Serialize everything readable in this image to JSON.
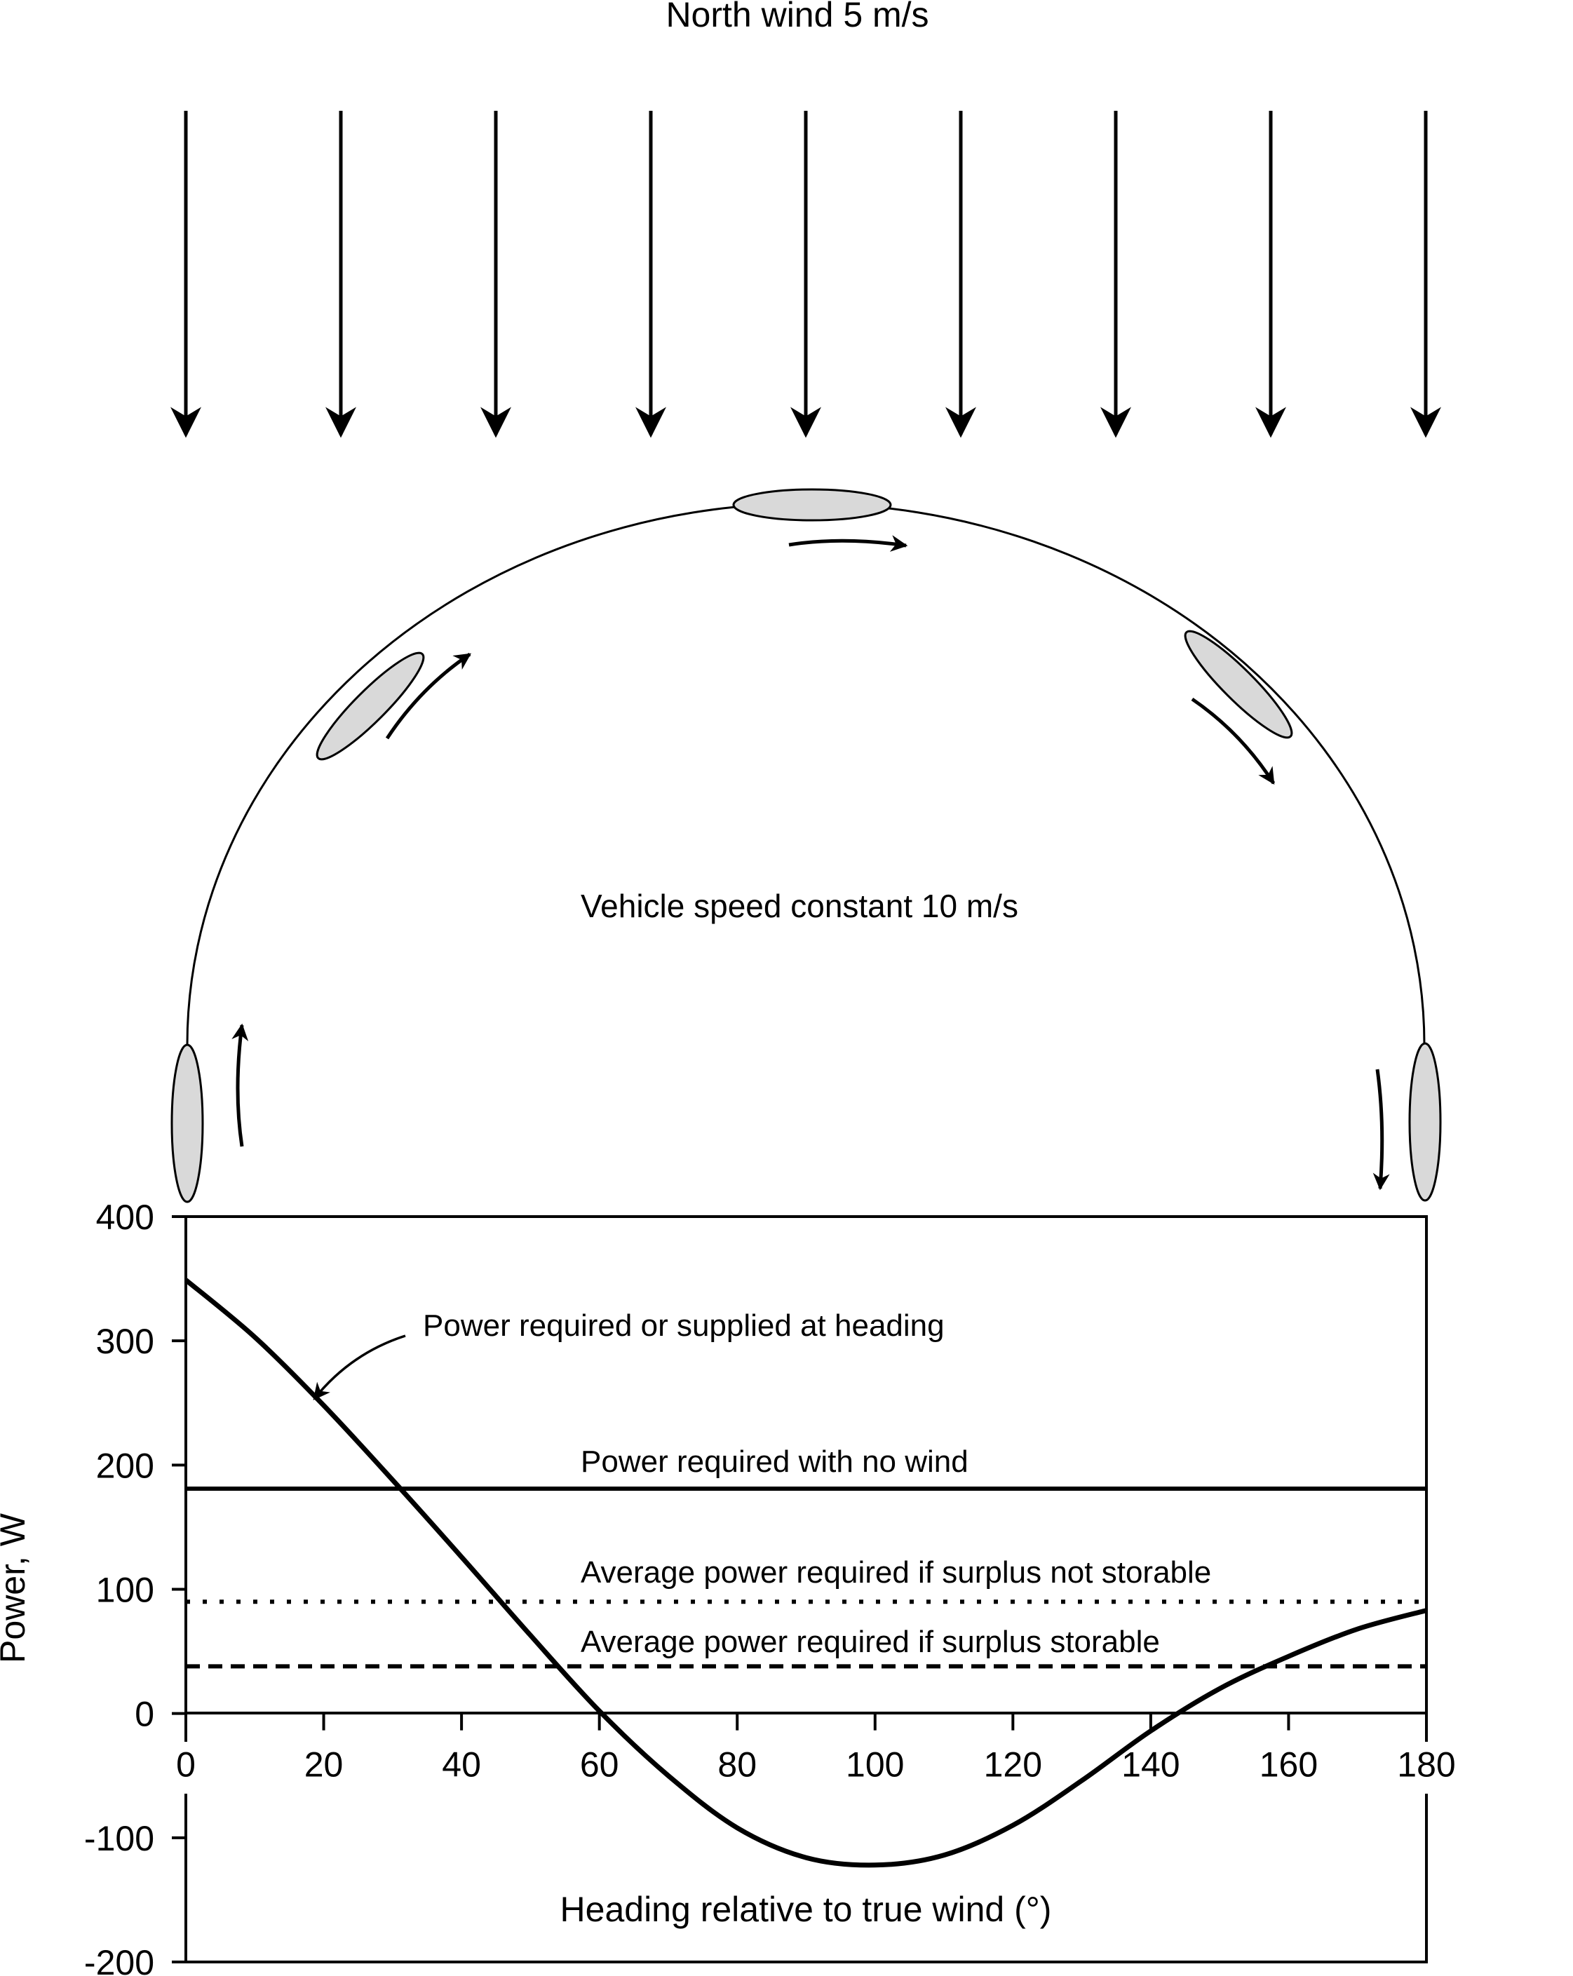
{
  "diagram": {
    "wind_label": "North wind 5 m/s",
    "vehicle_label": "Vehicle speed constant 10 m/s"
  },
  "chart_data": {
    "type": "line",
    "title": "",
    "xlabel": "Heading relative to true wind (°)",
    "ylabel": "Power, W",
    "xlim": [
      0,
      180
    ],
    "ylim": [
      -200,
      400
    ],
    "xticks": [
      0,
      20,
      40,
      60,
      80,
      100,
      120,
      140,
      160,
      180
    ],
    "yticks": [
      400,
      300,
      200,
      100,
      0,
      -100,
      -200
    ],
    "grid": false,
    "series": [
      {
        "name": "Power required or supplied at heading",
        "style": "solid",
        "x": [
          0,
          10,
          20,
          30,
          40,
          50,
          60,
          70,
          80,
          90,
          100,
          110,
          120,
          130,
          140,
          150,
          160,
          170,
          180
        ],
        "y": [
          349,
          303,
          248,
          188,
          126,
          63,
          2,
          -50,
          -92,
          -116,
          -122,
          -114,
          -90,
          -54,
          -14,
          20,
          46,
          68,
          83
        ]
      },
      {
        "name": "Power required with no wind",
        "style": "solid",
        "x": [
          0,
          180
        ],
        "y": [
          181,
          181
        ]
      },
      {
        "name": "Average power required if surplus not storable",
        "style": "dotted",
        "x": [
          0,
          180
        ],
        "y": [
          90,
          90
        ]
      },
      {
        "name": "Average power required if surplus storable",
        "style": "dashed",
        "x": [
          0,
          180
        ],
        "y": [
          38,
          38
        ]
      }
    ],
    "annotations": [
      {
        "text": "Power required or supplied at heading",
        "x": 35,
        "y": 310
      },
      {
        "text": "Power required with no wind",
        "x": 57,
        "y": 200
      },
      {
        "text": "Average power required if surplus not storable",
        "x": 57,
        "y": 110
      },
      {
        "text": "Average power required if surplus storable",
        "x": 57,
        "y": 55
      }
    ]
  }
}
